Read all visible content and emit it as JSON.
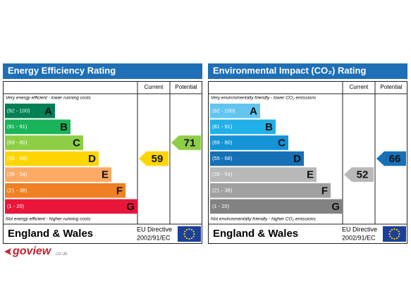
{
  "panels": [
    {
      "title": "Energy Efficiency Rating",
      "current_header": "Current",
      "potential_header": "Potential",
      "top_note": "Very energy efficient - lower running costs",
      "bottom_note": "Not energy efficient - higher running costs",
      "bands": [
        {
          "range": "(92 - 100)",
          "letter": "A",
          "color": "#008054"
        },
        {
          "range": "(81 - 91)",
          "letter": "B",
          "color": "#19b459"
        },
        {
          "range": "(69 - 80)",
          "letter": "C",
          "color": "#8dce46"
        },
        {
          "range": "(55 - 68)",
          "letter": "D",
          "color": "#ffd500"
        },
        {
          "range": "(39 - 54)",
          "letter": "E",
          "color": "#fcaa65"
        },
        {
          "range": "(21 - 38)",
          "letter": "F",
          "color": "#ef8023"
        },
        {
          "range": "(1 - 20)",
          "letter": "G",
          "color": "#e9153b"
        }
      ],
      "current": 59,
      "potential": 71,
      "country": "England & Wales",
      "directive": "EU Directive",
      "directive_number": "2002/91/EC"
    },
    {
      "title": "Environmental Impact (CO₂) Rating",
      "current_header": "Current",
      "potential_header": "Potential",
      "top_note": "Very environmentally friendly - lower CO₂ emissions",
      "bottom_note": "Not environmentally friendly - higher CO₂ emissions",
      "bands": [
        {
          "range": "(92 - 100)",
          "letter": "A",
          "color": "#63c5ef"
        },
        {
          "range": "(81 - 91)",
          "letter": "B",
          "color": "#22b0e8"
        },
        {
          "range": "(69 - 80)",
          "letter": "C",
          "color": "#1493d6"
        },
        {
          "range": "(55 - 68)",
          "letter": "D",
          "color": "#1670b6"
        },
        {
          "range": "(39 - 54)",
          "letter": "E",
          "color": "#b8b8b8"
        },
        {
          "range": "(21 - 38)",
          "letter": "F",
          "color": "#a0a0a0"
        },
        {
          "range": "(1 - 20)",
          "letter": "G",
          "color": "#828282"
        }
      ],
      "current": 52,
      "potential": 66,
      "country": "England & Wales",
      "directive": "EU Directive",
      "directive_number": "2002/91/EC"
    }
  ],
  "logo": {
    "name": "goview",
    "domain": ".co.uk"
  }
}
